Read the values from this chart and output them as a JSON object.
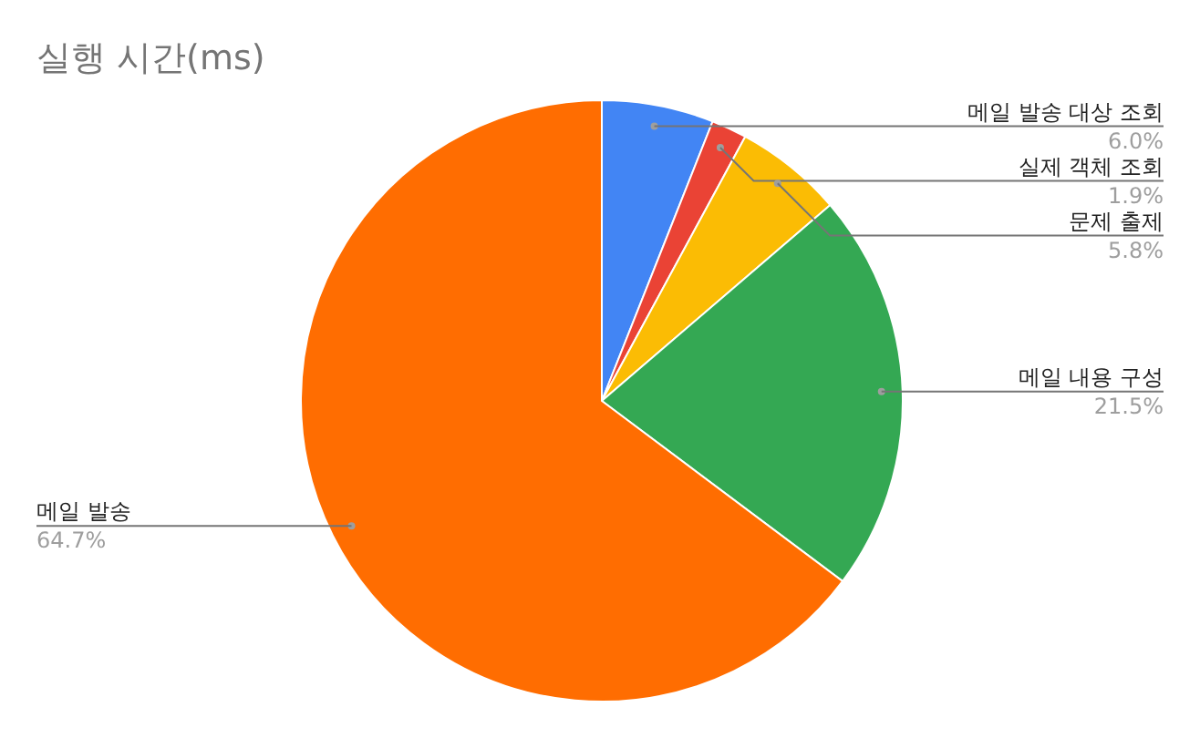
{
  "chart_data": {
    "type": "pie",
    "title": "실행 시간(ms)",
    "categories": [
      "메일 발송 대상 조회",
      "실제 객체 조회",
      "문제 출제",
      "메일 내용 구성",
      "메일 발송"
    ],
    "values": [
      6.0,
      1.9,
      5.8,
      21.5,
      64.7
    ],
    "colors": [
      "#4285f4",
      "#ea4335",
      "#fbbc04",
      "#34a853",
      "#ff6d01"
    ],
    "value_labels": [
      "6.0%",
      "1.9%",
      "5.8%",
      "21.5%",
      "64.7%"
    ]
  }
}
